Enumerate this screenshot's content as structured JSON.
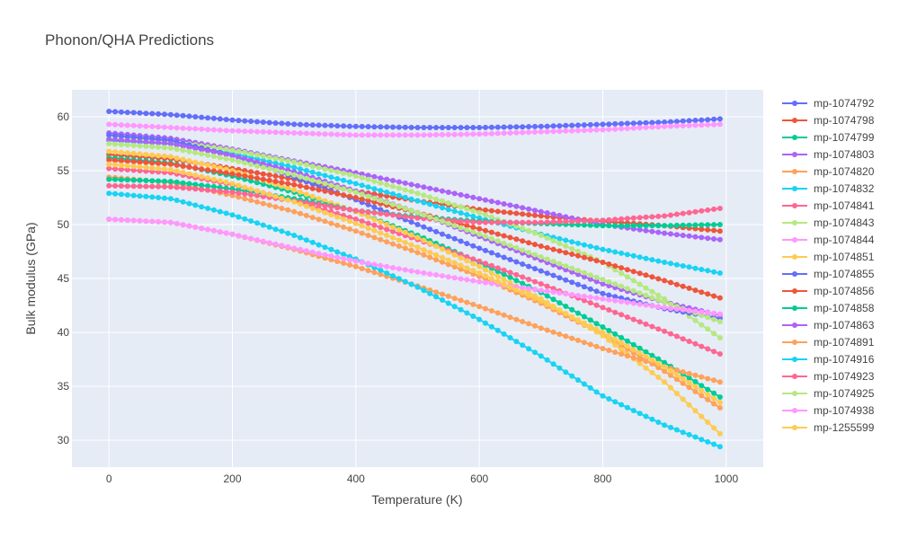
{
  "chart_data": {
    "type": "line",
    "title": "Phonon/QHA Predictions",
    "xlabel": "Temperature (K)",
    "ylabel": "Bulk modulus (GPa)",
    "xlim": [
      -60,
      1060
    ],
    "ylim": [
      27.5,
      62.5
    ],
    "xticks": [
      0,
      200,
      400,
      600,
      800,
      1000
    ],
    "yticks": [
      30,
      35,
      40,
      45,
      50,
      55,
      60
    ],
    "grid": true,
    "legend_position": "right",
    "markers": "circles",
    "x": [
      0,
      100,
      200,
      300,
      400,
      500,
      600,
      700,
      800,
      900,
      990
    ],
    "series": [
      {
        "name": "mp-1074792",
        "color": "#636EFA",
        "values": [
          60.5,
          60.2,
          59.7,
          59.3,
          59.1,
          59.0,
          59.0,
          59.1,
          59.3,
          59.5,
          59.8
        ]
      },
      {
        "name": "mp-1074798",
        "color": "#EF553B",
        "values": [
          56.5,
          56.1,
          55.2,
          54.2,
          53.1,
          52.2,
          51.4,
          50.8,
          50.3,
          49.9,
          49.4
        ]
      },
      {
        "name": "mp-1074799",
        "color": "#00CC96",
        "values": [
          56.2,
          55.7,
          54.5,
          53.0,
          51.2,
          49.0,
          46.5,
          43.7,
          40.5,
          37.2,
          34.0
        ]
      },
      {
        "name": "mp-1074803",
        "color": "#AB63FA",
        "values": [
          58.5,
          58.0,
          57.0,
          55.9,
          54.8,
          53.6,
          52.4,
          51.2,
          50.0,
          49.2,
          48.6
        ]
      },
      {
        "name": "mp-1074820",
        "color": "#FFA15A",
        "values": [
          54.4,
          53.9,
          52.7,
          51.2,
          49.4,
          47.4,
          45.2,
          42.7,
          39.8,
          36.4,
          33.0
        ]
      },
      {
        "name": "mp-1074832",
        "color": "#19D3F3",
        "values": [
          57.8,
          57.5,
          56.6,
          55.3,
          53.8,
          52.2,
          50.6,
          49.1,
          47.7,
          46.5,
          45.5
        ]
      },
      {
        "name": "mp-1074841",
        "color": "#FF6692",
        "values": [
          55.2,
          54.8,
          53.7,
          52.2,
          50.5,
          48.6,
          46.6,
          44.5,
          42.3,
          40.1,
          38.0
        ]
      },
      {
        "name": "mp-1074843",
        "color": "#B6E880",
        "values": [
          58.0,
          57.7,
          56.9,
          55.8,
          54.5,
          52.9,
          51.1,
          49.0,
          46.5,
          43.1,
          39.5
        ]
      },
      {
        "name": "mp-1074844",
        "color": "#FF97FF",
        "values": [
          59.3,
          59.0,
          58.7,
          58.5,
          58.3,
          58.3,
          58.4,
          58.6,
          58.8,
          59.1,
          59.3
        ]
      },
      {
        "name": "mp-1074851",
        "color": "#FECB52",
        "values": [
          56.8,
          56.3,
          55.0,
          53.2,
          51.2,
          48.8,
          46.1,
          43.1,
          39.7,
          35.4,
          30.6
        ]
      },
      {
        "name": "mp-1074855",
        "color": "#636EFA",
        "values": [
          58.3,
          57.8,
          56.4,
          54.4,
          52.3,
          50.0,
          47.8,
          45.7,
          43.6,
          42.2,
          41.3
        ]
      },
      {
        "name": "mp-1074856",
        "color": "#EF553B",
        "values": [
          56.0,
          55.6,
          54.7,
          53.7,
          52.5,
          51.1,
          49.6,
          48.0,
          46.5,
          44.8,
          43.2
        ]
      },
      {
        "name": "mp-1074858",
        "color": "#00CC96",
        "values": [
          54.2,
          54.0,
          53.3,
          52.4,
          51.3,
          50.7,
          50.3,
          50.1,
          49.9,
          49.9,
          50.0
        ]
      },
      {
        "name": "mp-1074863",
        "color": "#AB63FA",
        "values": [
          57.9,
          57.5,
          56.4,
          54.9,
          53.1,
          51.1,
          48.9,
          46.7,
          44.5,
          42.8,
          41.6
        ]
      },
      {
        "name": "mp-1074891",
        "color": "#FFA15A",
        "values": [
          50.5,
          50.2,
          49.1,
          47.7,
          46.1,
          44.3,
          42.4,
          40.4,
          38.5,
          36.8,
          35.4
        ]
      },
      {
        "name": "mp-1074916",
        "color": "#19D3F3",
        "values": [
          52.9,
          52.4,
          50.9,
          49.0,
          46.8,
          44.2,
          41.2,
          37.8,
          34.1,
          31.4,
          29.4
        ]
      },
      {
        "name": "mp-1074923",
        "color": "#FF6692",
        "values": [
          53.6,
          53.5,
          53.0,
          52.2,
          51.3,
          50.6,
          50.2,
          50.2,
          50.4,
          50.8,
          51.5
        ]
      },
      {
        "name": "mp-1074925",
        "color": "#B6E880",
        "values": [
          57.5,
          57.1,
          56.0,
          54.6,
          53.0,
          51.1,
          49.1,
          47.0,
          44.9,
          42.8,
          41.0
        ]
      },
      {
        "name": "mp-1074938",
        "color": "#FF97FF",
        "values": [
          50.5,
          50.2,
          49.1,
          47.8,
          46.6,
          45.6,
          44.7,
          43.9,
          43.1,
          42.3,
          41.7
        ]
      },
      {
        "name": "mp-1255599",
        "color": "#FECB52",
        "values": [
          55.6,
          55.1,
          53.8,
          52.1,
          50.1,
          47.9,
          45.5,
          42.9,
          40.0,
          36.8,
          33.5
        ]
      }
    ]
  }
}
